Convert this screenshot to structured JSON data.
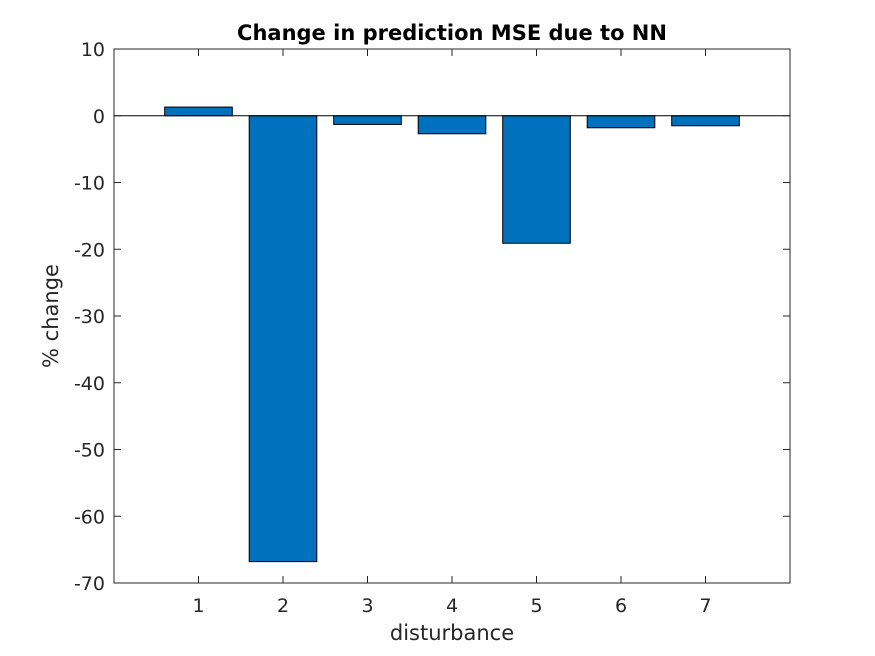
{
  "chart_data": {
    "type": "bar",
    "title": "Change in prediction MSE due to NN",
    "xlabel": "disturbance",
    "ylabel": "% change",
    "categories": [
      "1",
      "2",
      "3",
      "4",
      "5",
      "6",
      "7"
    ],
    "values": [
      1.3,
      -66.8,
      -1.3,
      -2.7,
      -19.1,
      -1.8,
      -1.5
    ],
    "xlim": [
      0,
      8
    ],
    "ylim": [
      -70,
      10
    ],
    "yticks": [
      "10",
      "0",
      "-10",
      "-20",
      "-30",
      "-40",
      "-50",
      "-60",
      "-70"
    ],
    "grid": false,
    "legend": "none",
    "bar_color": "#0072BD",
    "edge_color": "#000000"
  }
}
